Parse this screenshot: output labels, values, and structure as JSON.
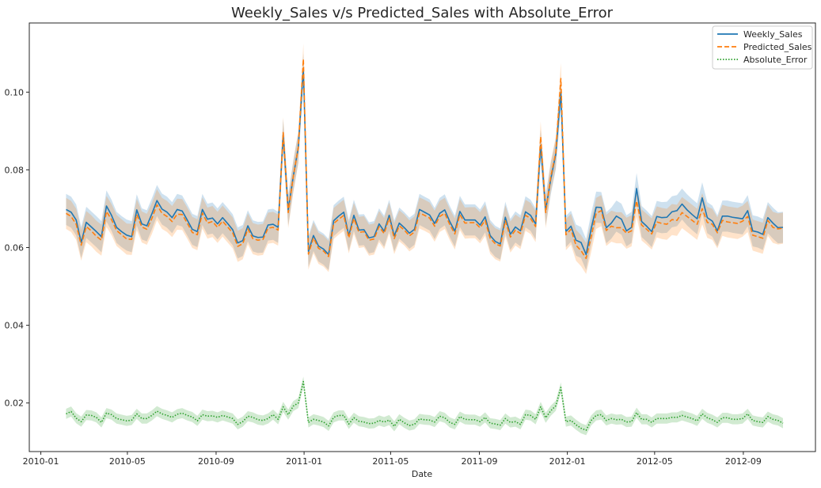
{
  "chart_data": {
    "type": "line",
    "title": "Weekly_Sales v/s Predicted_Sales with Absolute_Error",
    "xlabel": "Date",
    "ylabel": "",
    "x_ticks": [
      "2010-01",
      "2010-05",
      "2010-09",
      "2011-01",
      "2011-05",
      "2011-09",
      "2012-01",
      "2012-05",
      "2012-09"
    ],
    "y_ticks": [
      "0.02",
      "0.04",
      "0.06",
      "0.08",
      "0.10"
    ],
    "xlim": [
      "2009-12-16",
      "2012-12-10"
    ],
    "ylim": [
      0.0075,
      0.1178
    ],
    "grid": false,
    "legend_position": "upper right",
    "x_start": "2010-02-05",
    "x_step_days": 7,
    "series": [
      {
        "name": "Weekly_Sales",
        "color": "#1f77b4",
        "style": "solid",
        "band": 0.004,
        "values": [
          0.0698,
          0.0691,
          0.0671,
          0.0613,
          0.0665,
          0.0653,
          0.0641,
          0.0628,
          0.0707,
          0.0683,
          0.0652,
          0.0641,
          0.0632,
          0.0628,
          0.0697,
          0.0661,
          0.0656,
          0.0687,
          0.0721,
          0.0699,
          0.0691,
          0.0677,
          0.0698,
          0.0694,
          0.0671,
          0.0647,
          0.0641,
          0.0698,
          0.0673,
          0.0676,
          0.0661,
          0.0677,
          0.0662,
          0.0646,
          0.0612,
          0.0618,
          0.0656,
          0.063,
          0.0626,
          0.0627,
          0.0658,
          0.066,
          0.0652,
          0.0891,
          0.0696,
          0.0783,
          0.0858,
          0.106,
          0.059,
          0.0631,
          0.0604,
          0.0596,
          0.0582,
          0.0669,
          0.0681,
          0.0691,
          0.0631,
          0.0683,
          0.0645,
          0.0646,
          0.0625,
          0.0628,
          0.0661,
          0.0642,
          0.0683,
          0.063,
          0.0663,
          0.0651,
          0.0637,
          0.0647,
          0.0698,
          0.0691,
          0.0684,
          0.0662,
          0.0688,
          0.0697,
          0.0667,
          0.0642,
          0.0693,
          0.0671,
          0.0671,
          0.0671,
          0.0658,
          0.0679,
          0.0631,
          0.0616,
          0.0609,
          0.0678,
          0.0634,
          0.0653,
          0.0643,
          0.0692,
          0.0683,
          0.0661,
          0.0863,
          0.0697,
          0.0776,
          0.0841,
          0.1,
          0.0641,
          0.0655,
          0.0619,
          0.0613,
          0.0582,
          0.0648,
          0.0704,
          0.0703,
          0.0651,
          0.0663,
          0.0681,
          0.0673,
          0.0643,
          0.0652,
          0.0752,
          0.0667,
          0.0655,
          0.0641,
          0.068,
          0.0677,
          0.0678,
          0.0692,
          0.0695,
          0.0712,
          0.0697,
          0.0685,
          0.0674,
          0.0728,
          0.0677,
          0.0668,
          0.0643,
          0.0681,
          0.0681,
          0.0678,
          0.0676,
          0.0674,
          0.0695,
          0.0643,
          0.064,
          0.0634,
          0.0677,
          0.0663,
          0.0651,
          0.0652
        ]
      },
      {
        "name": "Predicted_Sales",
        "color": "#ff7f0e",
        "style": "dashed",
        "band": 0.004,
        "values": [
          0.0688,
          0.068,
          0.066,
          0.0606,
          0.0654,
          0.0643,
          0.0629,
          0.0619,
          0.0693,
          0.0672,
          0.0644,
          0.0633,
          0.0622,
          0.0621,
          0.0685,
          0.0653,
          0.0647,
          0.0675,
          0.071,
          0.0688,
          0.068,
          0.0667,
          0.0686,
          0.0685,
          0.0663,
          0.0639,
          0.0633,
          0.0689,
          0.0663,
          0.0667,
          0.0652,
          0.0668,
          0.0653,
          0.0638,
          0.0603,
          0.061,
          0.0648,
          0.0623,
          0.0619,
          0.0621,
          0.065,
          0.0652,
          0.0645,
          0.0896,
          0.069,
          0.0782,
          0.0858,
          0.1085,
          0.0583,
          0.0625,
          0.0598,
          0.0591,
          0.0577,
          0.0662,
          0.0673,
          0.0683,
          0.0625,
          0.0675,
          0.0639,
          0.0641,
          0.0619,
          0.0622,
          0.0654,
          0.0636,
          0.0676,
          0.0623,
          0.0656,
          0.0645,
          0.063,
          0.064,
          0.0689,
          0.0683,
          0.0676,
          0.0655,
          0.068,
          0.0688,
          0.0659,
          0.0635,
          0.0685,
          0.0663,
          0.0664,
          0.0664,
          0.0651,
          0.067,
          0.0624,
          0.061,
          0.0604,
          0.0669,
          0.0627,
          0.0645,
          0.0636,
          0.0683,
          0.0675,
          0.0654,
          0.0885,
          0.069,
          0.0782,
          0.0845,
          0.1035,
          0.0633,
          0.0647,
          0.0606,
          0.0592,
          0.0572,
          0.0628,
          0.0688,
          0.0695,
          0.0644,
          0.0655,
          0.0651,
          0.0651,
          0.0637,
          0.0643,
          0.072,
          0.0658,
          0.0647,
          0.0635,
          0.0666,
          0.0662,
          0.066,
          0.0672,
          0.067,
          0.069,
          0.068,
          0.067,
          0.066,
          0.07,
          0.0665,
          0.066,
          0.0638,
          0.067,
          0.0666,
          0.0664,
          0.0662,
          0.0668,
          0.068,
          0.0632,
          0.0628,
          0.0624,
          0.067,
          0.0652,
          0.0648,
          0.065
        ]
      },
      {
        "name": "Absolute_Error",
        "color": "#2ca02c",
        "style": "dotted",
        "band": 0.0013,
        "values": [
          0.0172,
          0.0178,
          0.0161,
          0.0152,
          0.0169,
          0.0168,
          0.0163,
          0.015,
          0.0174,
          0.017,
          0.016,
          0.0157,
          0.0154,
          0.0156,
          0.0172,
          0.016,
          0.016,
          0.0168,
          0.0179,
          0.0172,
          0.0168,
          0.0163,
          0.0171,
          0.0174,
          0.0168,
          0.0164,
          0.0154,
          0.017,
          0.0166,
          0.0167,
          0.0163,
          0.0168,
          0.0164,
          0.016,
          0.0145,
          0.0152,
          0.0166,
          0.0163,
          0.0157,
          0.0155,
          0.016,
          0.017,
          0.0158,
          0.019,
          0.017,
          0.0192,
          0.02,
          0.0255,
          0.015,
          0.0158,
          0.0155,
          0.0151,
          0.0141,
          0.0163,
          0.0168,
          0.0168,
          0.0146,
          0.0162,
          0.0153,
          0.0151,
          0.0147,
          0.0148,
          0.0155,
          0.0151,
          0.0156,
          0.014,
          0.0158,
          0.0149,
          0.0142,
          0.0145,
          0.0159,
          0.0157,
          0.0156,
          0.0151,
          0.0166,
          0.0162,
          0.015,
          0.0145,
          0.0165,
          0.0158,
          0.0157,
          0.0157,
          0.0152,
          0.0163,
          0.0148,
          0.0146,
          0.0143,
          0.016,
          0.015,
          0.0152,
          0.0145,
          0.017,
          0.0168,
          0.0158,
          0.019,
          0.0162,
          0.018,
          0.0193,
          0.024,
          0.0152,
          0.0155,
          0.0144,
          0.0135,
          0.013,
          0.0155,
          0.0168,
          0.017,
          0.0155,
          0.016,
          0.0157,
          0.0158,
          0.0151,
          0.0152,
          0.0175,
          0.0158,
          0.0158,
          0.015,
          0.016,
          0.016,
          0.016,
          0.0163,
          0.0163,
          0.0168,
          0.0164,
          0.016,
          0.0154,
          0.0172,
          0.0162,
          0.0157,
          0.015,
          0.0162,
          0.0162,
          0.0158,
          0.0158,
          0.016,
          0.0172,
          0.0155,
          0.0152,
          0.015,
          0.0165,
          0.0158,
          0.0155,
          0.0148
        ]
      }
    ]
  }
}
